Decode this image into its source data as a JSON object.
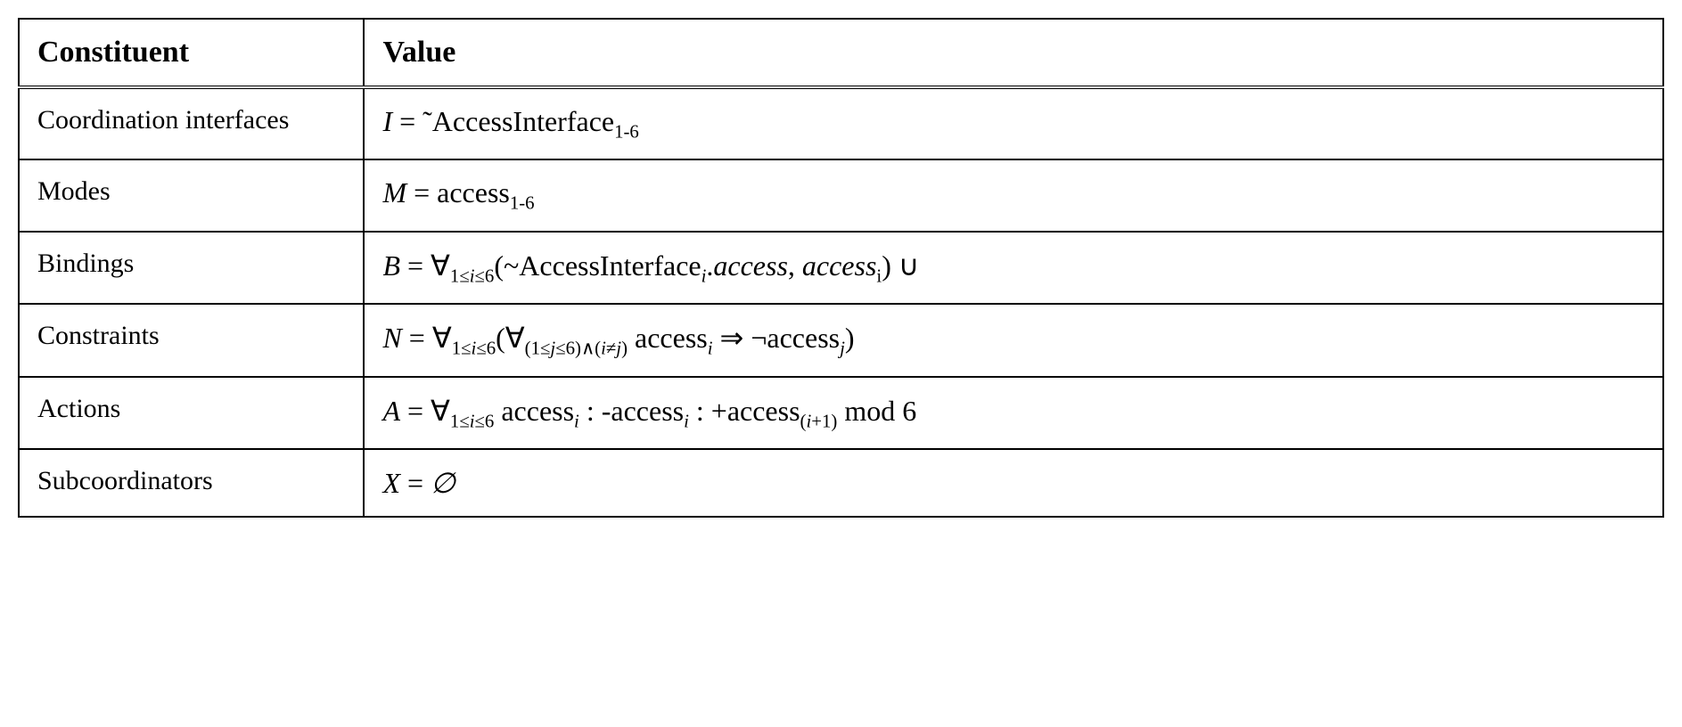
{
  "table": {
    "border_color": "#000000",
    "background_color": "#ffffff",
    "text_color": "#000000",
    "font_family": "Times New Roman",
    "header_fontsize": 34,
    "label_fontsize": 30,
    "value_fontsize": 32,
    "col_widths_pct": [
      21,
      79
    ],
    "headers": {
      "col1": "Constituent",
      "col2": "Value"
    },
    "rows": [
      {
        "label": "Coordination interfaces",
        "value_html": "<span class=\"math-var\">I</span> = ˜AccessInterface<span class=\"sub\">1-6</span>"
      },
      {
        "label": "Modes",
        "value_html": "<span class=\"math-var\">M</span> = access<span class=\"sub\">1-6</span>"
      },
      {
        "label": "Bindings",
        "value_html": "<span class=\"math-var\">B</span> = ∀<span class=\"sub\">1≤<span class=\"italic\">i</span>≤6</span>(~AccessInterface<span class=\"subitalic\">i</span>.<span class=\"italic\">access</span>, <span class=\"italic\">access</span><span class=\"sub\">i</span>) ∪"
      },
      {
        "label": "Constraints",
        "value_html": "<span class=\"math-var\">N</span> = ∀<span class=\"sub\">1≤<span class=\"italic\">i</span>≤6</span>(∀<span class=\"sub\">(1≤<span class=\"italic\">j</span>≤6)∧(<span class=\"italic\">i</span>≠<span class=\"italic\">j</span>)</span> access<span class=\"subitalic\">i</span> ⇒ ¬access<span class=\"subitalic\">j</span>)"
      },
      {
        "label": "Actions",
        "value_html": "<span class=\"math-var\">A</span> = ∀<span class=\"sub\">1≤<span class=\"italic\">i</span>≤6</span> access<span class=\"subitalic\">i</span> : -access<span class=\"subitalic\">i</span> : +access<span class=\"sub\">(<span class=\"italic\">i</span>+1)</span> mod 6"
      },
      {
        "label": "Subcoordinators",
        "value_html": "<span class=\"math-var\">X</span> = <span class=\"italic\">∅</span>"
      }
    ]
  }
}
